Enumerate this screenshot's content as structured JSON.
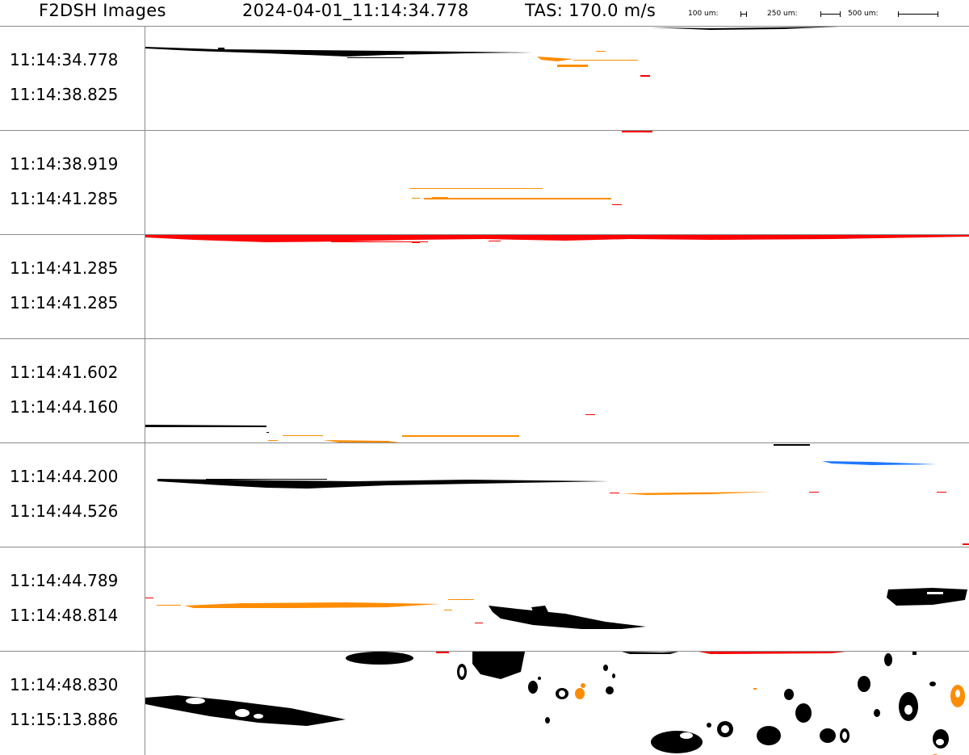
{
  "header": {
    "title": "F2DSH Images",
    "timestamp": "2024-04-01_11:14:34.778",
    "tas": "TAS: 170.0 m/s",
    "scale_labels": [
      "100 um:",
      "250 um:",
      "500 um:"
    ]
  },
  "colors": {
    "black": "#000000",
    "orange": "#ff8c00",
    "red": "#ff0000",
    "blue": "#1e78ff",
    "divider": "#8a8a8a"
  },
  "panels": [
    {
      "start": "11:14:34.778",
      "end": "11:14:38.825"
    },
    {
      "start": "11:14:38.919",
      "end": "11:14:41.285"
    },
    {
      "start": "11:14:41.285",
      "end": "11:14:41.285"
    },
    {
      "start": "11:14:41.602",
      "end": "11:14:44.160"
    },
    {
      "start": "11:14:44.200",
      "end": "11:14:44.526"
    },
    {
      "start": "11:14:44.789",
      "end": "11:14:48.814"
    },
    {
      "start": "11:14:48.830",
      "end": "11:15:13.886"
    }
  ]
}
